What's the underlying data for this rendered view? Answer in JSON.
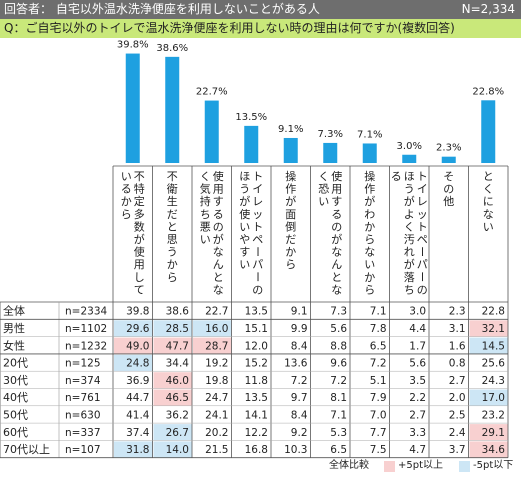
{
  "header": {
    "respondent": "回答者： 自宅以外温水洗浄便座を利用しないことがある人",
    "n": "N=2,334"
  },
  "question": "Q：ご自宅以外のトイレで温水洗浄便座を利用しない時の理由は何ですか(複数回答)",
  "legend": {
    "base": "全体比較",
    "high": "+5pt以上",
    "low": "-5pt以下"
  },
  "colors": {
    "bar": "#1ea0e0",
    "header_bg": "#6e6e6e",
    "question_bg": "#c9e87a",
    "high": "#f8d0d0",
    "low": "#cde6f5"
  },
  "chart_data": {
    "type": "bar",
    "categories": [
      "不特定多数が使用しているから",
      "不衛生だと思うから",
      "使用するのがなんとなく気持ち悪い",
      "トイレットペーパーのほうが使いやすい",
      "操作が面倒だから",
      "使用するのがなんとなく恐い",
      "操作がわからないから",
      "トイレットペーパーのほうがよく汚れが落ちる",
      "その他",
      "とくにない"
    ],
    "values": [
      39.8,
      38.6,
      22.7,
      13.5,
      9.1,
      7.3,
      7.1,
      3.0,
      2.3,
      22.8
    ],
    "value_labels": [
      "39.8%",
      "38.6%",
      "22.7%",
      "13.5%",
      "9.1%",
      "7.3%",
      "7.1%",
      "3.0%",
      "2.3%",
      "22.8%"
    ],
    "ylim": [
      0,
      40
    ],
    "table": {
      "rows": [
        {
          "label": "全体",
          "n": "n=2334",
          "values": [
            "39.8",
            "38.6",
            "22.7",
            "13.5",
            "9.1",
            "7.3",
            "7.1",
            "3.0",
            "2.3",
            "22.8"
          ],
          "marks": [
            "",
            "",
            "",
            "",
            "",
            "",
            "",
            "",
            "",
            ""
          ]
        },
        {
          "label": "男性",
          "n": "n=1102",
          "values": [
            "29.6",
            "28.5",
            "16.0",
            "15.1",
            "9.9",
            "5.6",
            "7.8",
            "4.4",
            "3.1",
            "32.1"
          ],
          "marks": [
            "low",
            "low",
            "low",
            "",
            "",
            "",
            "",
            "",
            "",
            "high"
          ]
        },
        {
          "label": "女性",
          "n": "n=1232",
          "values": [
            "49.0",
            "47.7",
            "28.7",
            "12.0",
            "8.4",
            "8.8",
            "6.5",
            "1.7",
            "1.6",
            "14.5"
          ],
          "marks": [
            "high",
            "high",
            "high",
            "",
            "",
            "",
            "",
            "",
            "",
            "low"
          ]
        },
        {
          "label": "20代",
          "n": "n=125",
          "values": [
            "24.8",
            "34.4",
            "19.2",
            "15.2",
            "13.6",
            "9.6",
            "7.2",
            "5.6",
            "0.8",
            "25.6"
          ],
          "marks": [
            "low",
            "",
            "",
            "",
            "",
            "",
            "",
            "",
            "",
            ""
          ]
        },
        {
          "label": "30代",
          "n": "n=374",
          "values": [
            "36.9",
            "46.0",
            "19.8",
            "11.8",
            "7.2",
            "7.2",
            "5.1",
            "3.5",
            "2.7",
            "24.3"
          ],
          "marks": [
            "",
            "high",
            "",
            "",
            "",
            "",
            "",
            "",
            "",
            ""
          ]
        },
        {
          "label": "40代",
          "n": "n=761",
          "values": [
            "44.7",
            "46.5",
            "24.7",
            "13.5",
            "9.7",
            "8.1",
            "7.9",
            "2.2",
            "2.0",
            "17.0"
          ],
          "marks": [
            "",
            "high",
            "",
            "",
            "",
            "",
            "",
            "",
            "",
            "low"
          ]
        },
        {
          "label": "50代",
          "n": "n=630",
          "values": [
            "41.4",
            "36.2",
            "24.1",
            "14.1",
            "8.4",
            "7.1",
            "7.0",
            "2.7",
            "2.5",
            "23.2"
          ],
          "marks": [
            "",
            "",
            "",
            "",
            "",
            "",
            "",
            "",
            "",
            ""
          ]
        },
        {
          "label": "60代",
          "n": "n=337",
          "values": [
            "37.4",
            "26.7",
            "20.2",
            "12.2",
            "9.2",
            "5.3",
            "7.7",
            "3.3",
            "2.4",
            "29.1"
          ],
          "marks": [
            "",
            "low",
            "",
            "",
            "",
            "",
            "",
            "",
            "",
            "high"
          ]
        },
        {
          "label": "70代以上",
          "n": "n=107",
          "values": [
            "31.8",
            "14.0",
            "21.5",
            "16.8",
            "10.3",
            "6.5",
            "7.5",
            "4.7",
            "3.7",
            "34.6"
          ],
          "marks": [
            "low",
            "low",
            "",
            "",
            "",
            "",
            "",
            "",
            "",
            "high"
          ]
        }
      ]
    }
  }
}
